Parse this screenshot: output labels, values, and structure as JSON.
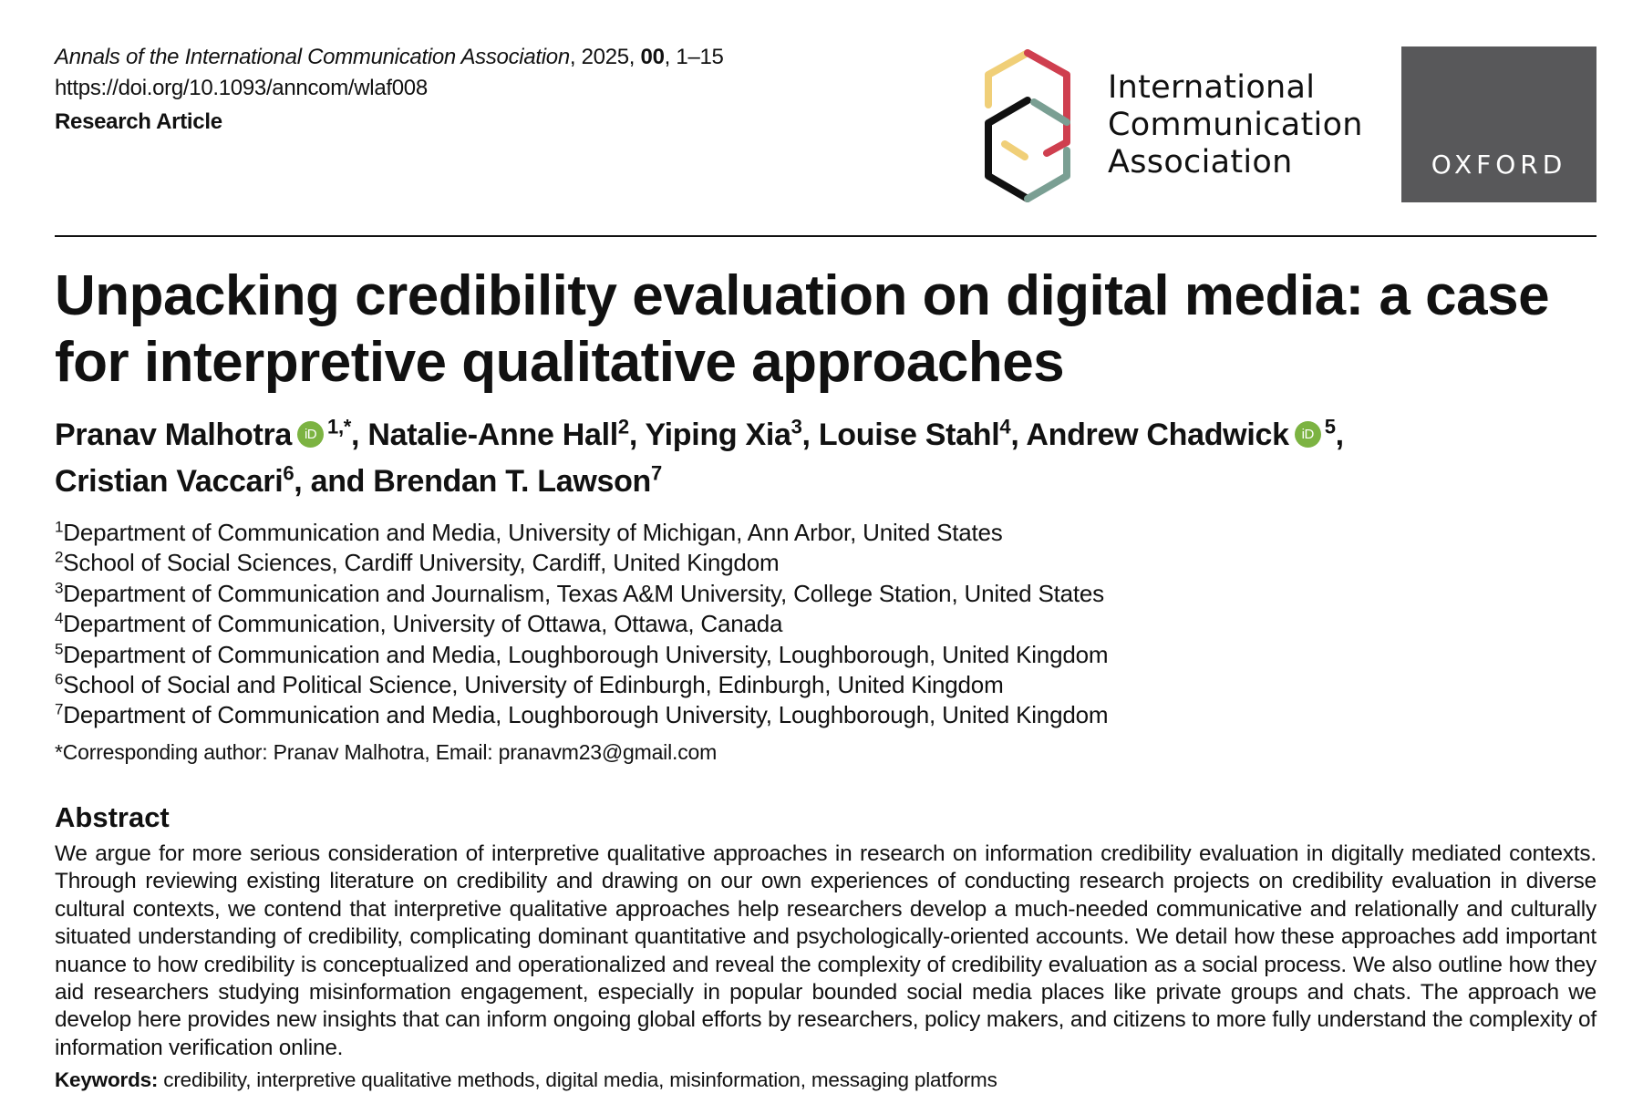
{
  "header": {
    "journal_name": "Annals of the International Communication Association",
    "year_text": ", 2025, ",
    "volume": "00",
    "pages_text": ", 1–15",
    "doi": "https://doi.org/10.1093/anncom/wlaf008",
    "article_type": "Research Article"
  },
  "logos": {
    "ica_line1": "International",
    "ica_line2": "Communication",
    "ica_line3": "Association",
    "oxford": "OXFORD",
    "orcid_label": "iD"
  },
  "article": {
    "title": "Unpacking credibility evaluation on digital media: a case for interpretive qualitative approaches"
  },
  "authors": [
    {
      "name": "Pranav Malhotra",
      "sup": "1,*",
      "orcid": true,
      "sep": ", "
    },
    {
      "name": "Natalie-Anne Hall",
      "sup": "2",
      "sep": ", "
    },
    {
      "name": "Yiping Xia",
      "sup": "3",
      "sep": ", "
    },
    {
      "name": "Louise Stahl",
      "sup": "4",
      "sep": ", "
    },
    {
      "name": "Andrew Chadwick",
      "sup": "5",
      "orcid": true,
      "sep": ", "
    },
    {
      "name": "Cristian Vaccari",
      "sup": "6",
      "sep": ", and "
    },
    {
      "name": "Brendan T. Lawson",
      "sup": "7",
      "sep": ""
    }
  ],
  "affiliations": [
    {
      "num": "1",
      "text": "Department of Communication and Media, University of Michigan, Ann Arbor, United States"
    },
    {
      "num": "2",
      "text": "School of Social Sciences, Cardiff University, Cardiff, United Kingdom"
    },
    {
      "num": "3",
      "text": "Department of Communication and Journalism, Texas A&M University, College Station, United States"
    },
    {
      "num": "4",
      "text": "Department of Communication, University of Ottawa, Ottawa, Canada"
    },
    {
      "num": "5",
      "text": "Department of Communication and Media, Loughborough University, Loughborough, United Kingdom"
    },
    {
      "num": "6",
      "text": "School of Social and Political Science, University of Edinburgh, Edinburgh, United Kingdom"
    },
    {
      "num": "7",
      "text": "Department of Communication and Media, Loughborough University, Loughborough, United Kingdom"
    }
  ],
  "corresponding": "*Corresponding author: Pranav Malhotra, Email: pranavm23@gmail.com",
  "abstract": {
    "heading": "Abstract",
    "text": "We argue for more serious consideration of interpretive qualitative approaches in research on information credibility evaluation in digitally mediated contexts. Through reviewing existing literature on credibility and drawing on our own experiences of conducting research projects on credibility evaluation in diverse cultural contexts, we contend that interpretive qualitative approaches help researchers develop a much-needed communicative and relationally and culturally situated understanding of credibility, complicating dominant quantitative and psychologically-ori­ented accounts. We detail how these approaches add important nuance to how credibility is conceptualized and operationalized and reveal the complexity of credibility evaluation as a social process. We also outline how they aid researchers studying misinformation engagement, espe­cially in popular bounded social media places like private groups and chats. The approach we develop here provides new insights that can inform ongoing global efforts by researchers, policy makers, and citizens to more fully understand the complexity of information verification online."
  },
  "keywords": {
    "label": "Keywords:",
    "text": " credibility, interpretive qualitative methods, digital media, misinformation, messaging platforms"
  },
  "colors": {
    "ica_yellow": "#f0cf78",
    "ica_red": "#cf3f4f",
    "ica_black": "#111111",
    "ica_teal": "#7a9f93",
    "oxford_bg": "#58585a",
    "orcid_green": "#7cb342"
  }
}
